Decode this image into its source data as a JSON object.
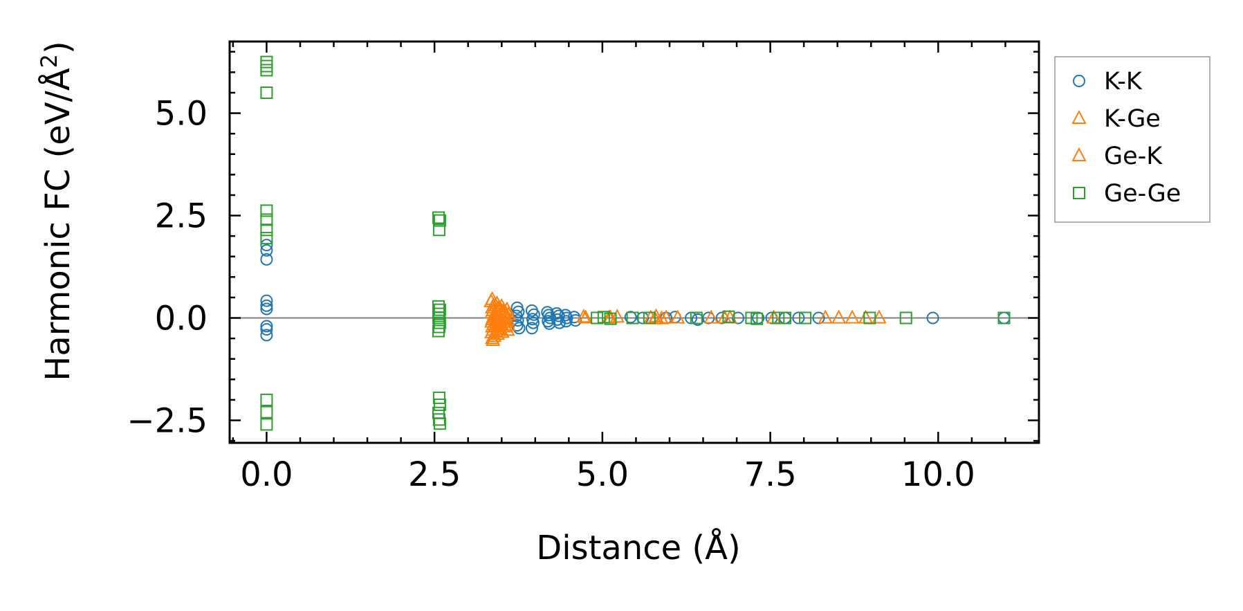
{
  "chart_data": {
    "type": "scatter",
    "xlabel": "Distance (Å)",
    "ylabel_main": "Harmonic FC (eV/Å",
    "ylabel_sup": "2",
    "ylabel_close": ")",
    "xlim": [
      -0.55,
      11.5
    ],
    "ylim": [
      -3.05,
      6.75
    ],
    "xticks": [
      {
        "value": 0.0,
        "label": "0.0"
      },
      {
        "value": 2.5,
        "label": "2.5"
      },
      {
        "value": 5.0,
        "label": "5.0"
      },
      {
        "value": 7.5,
        "label": "7.5"
      },
      {
        "value": 10.0,
        "label": "10.0"
      }
    ],
    "yticks": [
      {
        "value": -2.5,
        "label": "−2.5"
      },
      {
        "value": 0.0,
        "label": "0.0"
      },
      {
        "value": 2.5,
        "label": "2.5"
      },
      {
        "value": 5.0,
        "label": "5.0"
      }
    ],
    "x_minor_step": 0.5,
    "y_minor_step": 0.5,
    "zero_line": 0,
    "legend_position": "outside-upper-right",
    "colors": {
      "kk": "#1f77b4",
      "kge": "#ff7f0e",
      "gek": "#ff7f0e",
      "gege": "#2ca02c",
      "zero_line": "#808080"
    },
    "series": [
      {
        "id": "kk",
        "name": "K-K",
        "marker": "circle",
        "points": [
          [
            0,
            1.78
          ],
          [
            0,
            1.65
          ],
          [
            0,
            1.43
          ],
          [
            0,
            0.42
          ],
          [
            0,
            0.3
          ],
          [
            0,
            0.22
          ],
          [
            0,
            -0.2
          ],
          [
            0,
            -0.28
          ],
          [
            0,
            -0.42
          ],
          [
            3.73,
            0.25
          ],
          [
            3.75,
            0.15
          ],
          [
            3.72,
            0.05
          ],
          [
            3.74,
            -0.06
          ],
          [
            3.73,
            -0.18
          ],
          [
            3.76,
            -0.25
          ],
          [
            3.95,
            0.18
          ],
          [
            3.98,
            0.08
          ],
          [
            3.96,
            -0.03
          ],
          [
            3.97,
            -0.12
          ],
          [
            3.95,
            -0.25
          ],
          [
            4.18,
            0.14
          ],
          [
            4.2,
            0.07
          ],
          [
            4.22,
            0.0
          ],
          [
            4.19,
            -0.08
          ],
          [
            4.21,
            -0.14
          ],
          [
            4.32,
            0.11
          ],
          [
            4.35,
            0.05
          ],
          [
            4.33,
            -0.04
          ],
          [
            4.36,
            -0.12
          ],
          [
            4.45,
            0.07
          ],
          [
            4.47,
            0.0
          ],
          [
            4.46,
            -0.08
          ],
          [
            4.58,
            0.02
          ],
          [
            4.6,
            -0.06
          ],
          [
            5.42,
            0.02
          ],
          [
            5.6,
            0.0
          ],
          [
            5.95,
            0.0
          ],
          [
            6.08,
            0.02
          ],
          [
            6.32,
            0.0
          ],
          [
            6.42,
            -0.04
          ],
          [
            6.58,
            0.0
          ],
          [
            6.78,
            0.0
          ],
          [
            7.02,
            0.0
          ],
          [
            7.32,
            0.0
          ],
          [
            7.52,
            0.0
          ],
          [
            7.72,
            0.0
          ],
          [
            7.92,
            0.0
          ],
          [
            8.22,
            0.0
          ],
          [
            9.92,
            0.0
          ],
          [
            10.98,
            0.0
          ]
        ]
      },
      {
        "id": "kge",
        "name": "K-Ge",
        "marker": "triangle-up",
        "points": [
          [
            3.36,
            0.45
          ],
          [
            3.38,
            0.3
          ],
          [
            3.37,
            0.18
          ],
          [
            3.39,
            0.08
          ],
          [
            3.36,
            -0.04
          ],
          [
            3.38,
            -0.16
          ],
          [
            3.37,
            -0.3
          ],
          [
            3.39,
            -0.45
          ],
          [
            3.37,
            -0.55
          ],
          [
            3.43,
            0.35
          ],
          [
            3.45,
            0.22
          ],
          [
            3.44,
            0.1
          ],
          [
            3.46,
            -0.02
          ],
          [
            3.44,
            -0.14
          ],
          [
            3.45,
            -0.27
          ],
          [
            3.44,
            -0.4
          ],
          [
            3.5,
            0.28
          ],
          [
            3.52,
            0.15
          ],
          [
            3.51,
            0.03
          ],
          [
            3.53,
            -0.1
          ],
          [
            3.52,
            -0.22
          ],
          [
            3.51,
            -0.35
          ],
          [
            3.58,
            0.2
          ],
          [
            3.6,
            0.08
          ],
          [
            3.59,
            -0.05
          ],
          [
            3.6,
            -0.18
          ],
          [
            3.59,
            -0.3
          ],
          [
            4.75,
            0.0
          ],
          [
            5.12,
            0.0
          ],
          [
            5.22,
            0.02
          ],
          [
            5.8,
            0.03
          ],
          [
            5.88,
            -0.02
          ],
          [
            6.12,
            0.0
          ],
          [
            6.9,
            0.0
          ],
          [
            7.55,
            0.0
          ]
        ]
      },
      {
        "id": "gek",
        "name": "Ge-K",
        "marker": "triangle-up",
        "points": [
          [
            3.34,
            0.4
          ],
          [
            3.36,
            0.25
          ],
          [
            3.35,
            0.12
          ],
          [
            3.37,
            0.0
          ],
          [
            3.35,
            -0.1
          ],
          [
            3.36,
            -0.22
          ],
          [
            3.35,
            -0.36
          ],
          [
            3.36,
            -0.5
          ],
          [
            3.41,
            0.3
          ],
          [
            3.42,
            0.17
          ],
          [
            3.41,
            0.04
          ],
          [
            3.42,
            -0.08
          ],
          [
            3.41,
            -0.2
          ],
          [
            3.42,
            -0.33
          ],
          [
            3.48,
            0.22
          ],
          [
            3.49,
            0.1
          ],
          [
            3.48,
            -0.02
          ],
          [
            3.49,
            -0.15
          ],
          [
            3.48,
            -0.28
          ],
          [
            3.55,
            0.14
          ],
          [
            3.56,
            0.02
          ],
          [
            3.55,
            -0.1
          ],
          [
            3.56,
            -0.22
          ],
          [
            4.72,
            0.02
          ],
          [
            5.1,
            0.0
          ],
          [
            5.72,
            0.0
          ],
          [
            5.78,
            -0.02
          ],
          [
            5.95,
            0.0
          ],
          [
            6.62,
            0.0
          ],
          [
            6.82,
            0.0
          ],
          [
            8.32,
            0.0
          ],
          [
            8.52,
            0.0
          ],
          [
            8.72,
            0.0
          ],
          [
            8.92,
            0.0
          ],
          [
            9.12,
            0.0
          ]
        ]
      },
      {
        "id": "gege",
        "name": "Ge-Ge",
        "marker": "square",
        "points": [
          [
            0,
            6.25
          ],
          [
            0,
            6.15
          ],
          [
            0,
            6.05
          ],
          [
            0,
            5.5
          ],
          [
            0,
            2.62
          ],
          [
            0,
            2.4
          ],
          [
            0,
            2.15
          ],
          [
            0,
            1.95
          ],
          [
            0,
            -2.0
          ],
          [
            0,
            -2.3
          ],
          [
            0,
            -2.6
          ],
          [
            2.56,
            2.45
          ],
          [
            2.58,
            2.38
          ],
          [
            2.57,
            2.15
          ],
          [
            2.56,
            0.28
          ],
          [
            2.58,
            0.2
          ],
          [
            2.57,
            0.1
          ],
          [
            2.56,
            0.0
          ],
          [
            2.58,
            -0.12
          ],
          [
            2.57,
            -0.22
          ],
          [
            2.56,
            -0.32
          ],
          [
            2.57,
            -1.95
          ],
          [
            2.58,
            -2.12
          ],
          [
            2.56,
            -2.32
          ],
          [
            2.57,
            -2.48
          ],
          [
            2.58,
            -2.58
          ],
          [
            4.92,
            0.0
          ],
          [
            5.02,
            0.02
          ],
          [
            5.12,
            -0.02
          ],
          [
            5.45,
            0.0
          ],
          [
            5.7,
            0.0
          ],
          [
            6.4,
            0.0
          ],
          [
            6.88,
            0.03
          ],
          [
            7.22,
            0.0
          ],
          [
            7.3,
            -0.02
          ],
          [
            7.62,
            0.0
          ],
          [
            7.72,
            0.0
          ],
          [
            8.02,
            0.0
          ],
          [
            8.98,
            0.0
          ],
          [
            9.52,
            0.0
          ],
          [
            10.98,
            0.0
          ]
        ]
      }
    ]
  }
}
